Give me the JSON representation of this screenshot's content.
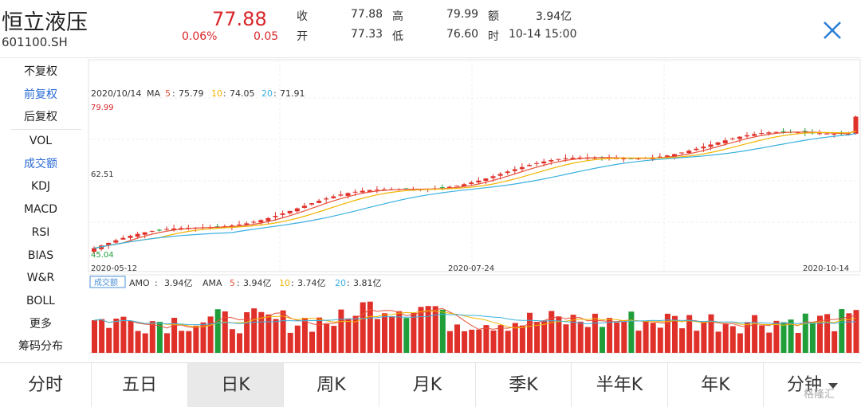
{
  "header": {
    "name": "恒立液压",
    "code": "601100.SH",
    "price": "77.88",
    "change_pct": "0.06%",
    "change": "0.05",
    "quote": {
      "close_label": "收",
      "close": "77.88",
      "open_label": "开",
      "open": "77.33",
      "high_label": "高",
      "high": "79.99",
      "low_label": "低",
      "low": "76.60",
      "amount_label": "额",
      "amount": "3.94亿",
      "time_label": "时",
      "time": "10-14 15:00"
    },
    "close_icon": "close-icon"
  },
  "sidebar": {
    "adjust": [
      {
        "label": "不复权",
        "active": false
      },
      {
        "label": "前复权",
        "active": true
      },
      {
        "label": "后复权",
        "active": false
      }
    ],
    "indicators": [
      {
        "label": "VOL",
        "active": false
      },
      {
        "label": "成交额",
        "active": true
      },
      {
        "label": "KDJ",
        "active": false
      },
      {
        "label": "MACD",
        "active": false
      },
      {
        "label": "RSI",
        "active": false
      },
      {
        "label": "BIAS",
        "active": false
      },
      {
        "label": "W&R",
        "active": false
      },
      {
        "label": "BOLL",
        "active": false
      },
      {
        "label": "更多",
        "active": false
      },
      {
        "label": "筹码分布",
        "active": false
      }
    ]
  },
  "chart_data": [
    {
      "type": "candlestick",
      "ma_date": "2020/10/14",
      "ma_label": "MA",
      "ma": [
        {
          "period": "5",
          "value": "75.79",
          "color": "#e8523a"
        },
        {
          "period": "10",
          "value": "74.05",
          "color": "#f0b400"
        },
        {
          "period": "20",
          "value": "71.91",
          "color": "#3ab0e0"
        }
      ],
      "y_labels": {
        "top": "79.99",
        "mid": "62.51",
        "bottom": "45.04"
      },
      "ylim": [
        45.04,
        79.99
      ],
      "x_labels": [
        "2020-05-12",
        "2020-07-24",
        "2020-10-14"
      ],
      "colors": {
        "up": "#e0302a",
        "down": "#1f9e3a"
      },
      "close_start": 47.5,
      "close_end": 77.88
    },
    {
      "type": "bar",
      "badge": "成交额",
      "amo_label": "AMO",
      "amo": "3.94亿",
      "ama_label": "AMA",
      "ama": [
        {
          "period": "5",
          "value": "3.94亿",
          "color": "#e8523a"
        },
        {
          "period": "10",
          "value": "3.74亿",
          "color": "#f0b400"
        },
        {
          "period": "20",
          "value": "3.81亿",
          "color": "#3ab0e0"
        }
      ]
    }
  ],
  "tabs": [
    {
      "label": "分时",
      "active": false
    },
    {
      "label": "五日",
      "active": false
    },
    {
      "label": "日K",
      "active": true
    },
    {
      "label": "周K",
      "active": false
    },
    {
      "label": "月K",
      "active": false
    },
    {
      "label": "季K",
      "active": false
    },
    {
      "label": "半年K",
      "active": false
    },
    {
      "label": "年K",
      "active": false
    },
    {
      "label": "分钟",
      "active": false,
      "dropdown": true
    }
  ],
  "watermark": "格隆汇"
}
